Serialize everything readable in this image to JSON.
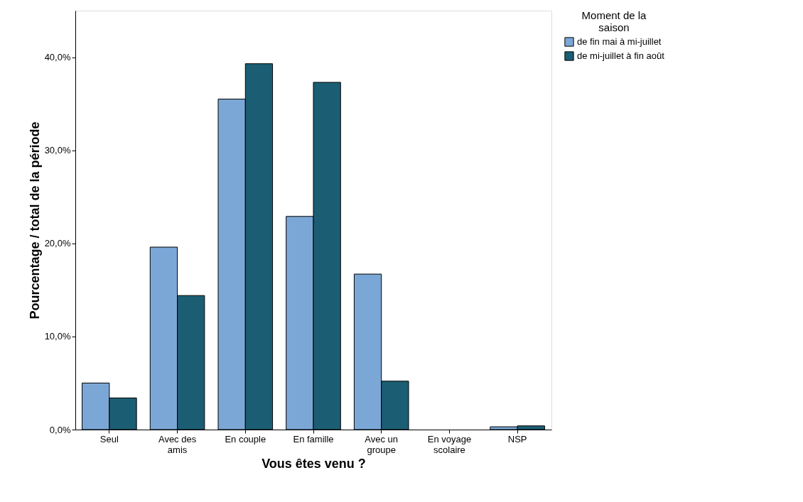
{
  "chart_data": {
    "type": "bar",
    "xlabel": "Vous êtes venu ?",
    "ylabel": "Pourcentage / total de la période",
    "legend_title": "Moment de la saison",
    "categories": [
      "Seul",
      "Avec des amis",
      "En couple",
      "En famille",
      "Avec un groupe",
      "En voyage scolaire",
      "NSP"
    ],
    "series": [
      {
        "name": "de fin mai à mi-juillet",
        "color": "#7ba7d6",
        "values": [
          5.0,
          19.6,
          35.5,
          22.9,
          16.7,
          0,
          0.3
        ]
      },
      {
        "name": "de mi-juillet à fin août",
        "color": "#1b5e74",
        "values": [
          3.4,
          14.4,
          39.3,
          37.3,
          5.2,
          0,
          0.4
        ]
      }
    ],
    "ylim": [
      0,
      45
    ],
    "yticks": [
      {
        "value": 0,
        "label": "0,0%"
      },
      {
        "value": 10,
        "label": "10,0%"
      },
      {
        "value": 20,
        "label": "20,0%"
      },
      {
        "value": 30,
        "label": "30,0%"
      },
      {
        "value": 40,
        "label": "40,0%"
      }
    ],
    "grid": false,
    "legend": "top right"
  }
}
